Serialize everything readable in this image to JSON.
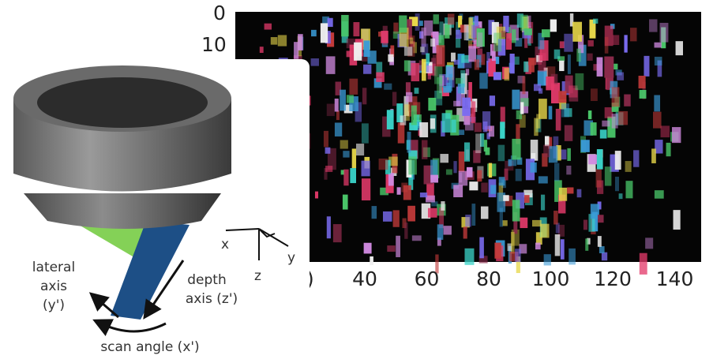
{
  "plot": {
    "yticks": [
      "0",
      "10"
    ],
    "xticks": [
      "40",
      "60",
      "80",
      "100",
      "120",
      "140"
    ],
    "hidden_xtick": ")"
  },
  "diagram": {
    "lateral_axis": [
      "lateral",
      "axis",
      "(y')"
    ],
    "depth_axis": [
      "depth",
      "axis (z')"
    ],
    "scan_angle": "scan angle (x')",
    "coords": {
      "x": "x",
      "y": "y",
      "z": "z"
    }
  }
}
